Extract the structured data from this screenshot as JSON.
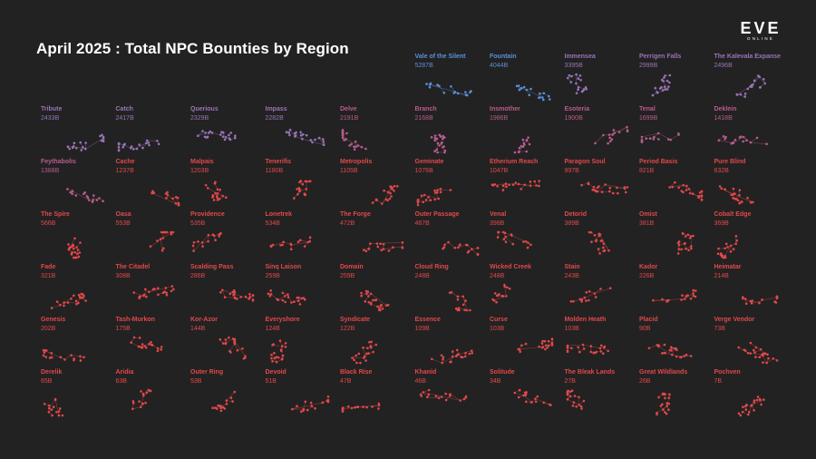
{
  "title": "April 2025 : Total NPC Bounties by Region",
  "logo": {
    "word": "EVE",
    "sub": "ONLINE"
  },
  "colors": {
    "background": "#222222",
    "tier_blue": "#5b8fd8",
    "tier_purple": "#9a74b6",
    "tier_pink": "#b75c8d",
    "tier_red": "#e2484a"
  },
  "chart_data": {
    "type": "table",
    "title": "April 2025 : Total NPC Bounties by Region",
    "unit": "B",
    "regions": [
      {
        "name": "Vale of the Silent",
        "value": "5287B",
        "tier": "blue"
      },
      {
        "name": "Fountain",
        "value": "4044B",
        "tier": "blue"
      },
      {
        "name": "Immensea",
        "value": "3395B",
        "tier": "purple"
      },
      {
        "name": "Perrigen Falls",
        "value": "2999B",
        "tier": "purple"
      },
      {
        "name": "The Kalevala Expanse",
        "value": "2496B",
        "tier": "purple"
      },
      {
        "name": "Tribute",
        "value": "2433B",
        "tier": "purple"
      },
      {
        "name": "Catch",
        "value": "2417B",
        "tier": "purple"
      },
      {
        "name": "Querious",
        "value": "2329B",
        "tier": "purple"
      },
      {
        "name": "Impass",
        "value": "2282B",
        "tier": "purple"
      },
      {
        "name": "Delve",
        "value": "2191B",
        "tier": "pink"
      },
      {
        "name": "Branch",
        "value": "2168B",
        "tier": "pink"
      },
      {
        "name": "Insmother",
        "value": "1986B",
        "tier": "pink"
      },
      {
        "name": "Esoteria",
        "value": "1900B",
        "tier": "pink"
      },
      {
        "name": "Tenal",
        "value": "1699B",
        "tier": "pink"
      },
      {
        "name": "Deklein",
        "value": "1418B",
        "tier": "pink"
      },
      {
        "name": "Feythabolis",
        "value": "1388B",
        "tier": "pink"
      },
      {
        "name": "Cache",
        "value": "1237B",
        "tier": "red"
      },
      {
        "name": "Malpais",
        "value": "1203B",
        "tier": "red"
      },
      {
        "name": "Tenerifis",
        "value": "1180B",
        "tier": "red"
      },
      {
        "name": "Metropolis",
        "value": "1105B",
        "tier": "red"
      },
      {
        "name": "Geminate",
        "value": "1076B",
        "tier": "red"
      },
      {
        "name": "Etherium Reach",
        "value": "1047B",
        "tier": "red"
      },
      {
        "name": "Paragon Soul",
        "value": "997B",
        "tier": "red"
      },
      {
        "name": "Period Basis",
        "value": "821B",
        "tier": "red"
      },
      {
        "name": "Pure Blind",
        "value": "632B",
        "tier": "red"
      },
      {
        "name": "The Spire",
        "value": "566B",
        "tier": "red"
      },
      {
        "name": "Oasa",
        "value": "553B",
        "tier": "red"
      },
      {
        "name": "Providence",
        "value": "535B",
        "tier": "red"
      },
      {
        "name": "Lonetrek",
        "value": "534B",
        "tier": "red"
      },
      {
        "name": "The Forge",
        "value": "472B",
        "tier": "red"
      },
      {
        "name": "Outer Passage",
        "value": "467B",
        "tier": "red"
      },
      {
        "name": "Venal",
        "value": "398B",
        "tier": "red"
      },
      {
        "name": "Detorid",
        "value": "389B",
        "tier": "red"
      },
      {
        "name": "Omist",
        "value": "381B",
        "tier": "red"
      },
      {
        "name": "Cobalt Edge",
        "value": "369B",
        "tier": "red"
      },
      {
        "name": "Fade",
        "value": "321B",
        "tier": "red"
      },
      {
        "name": "The Citadel",
        "value": "308B",
        "tier": "red"
      },
      {
        "name": "Scalding Pass",
        "value": "286B",
        "tier": "red"
      },
      {
        "name": "Sinq Laison",
        "value": "259B",
        "tier": "red"
      },
      {
        "name": "Domain",
        "value": "259B",
        "tier": "red"
      },
      {
        "name": "Cloud Ring",
        "value": "248B",
        "tier": "red"
      },
      {
        "name": "Wicked Creek",
        "value": "248B",
        "tier": "red"
      },
      {
        "name": "Stain",
        "value": "243B",
        "tier": "red"
      },
      {
        "name": "Kador",
        "value": "226B",
        "tier": "red"
      },
      {
        "name": "Heimatar",
        "value": "214B",
        "tier": "red"
      },
      {
        "name": "Genesis",
        "value": "202B",
        "tier": "red"
      },
      {
        "name": "Tash-Murkon",
        "value": "175B",
        "tier": "red"
      },
      {
        "name": "Kor-Azor",
        "value": "144B",
        "tier": "red"
      },
      {
        "name": "Everyshore",
        "value": "124B",
        "tier": "red"
      },
      {
        "name": "Syndicate",
        "value": "122B",
        "tier": "red"
      },
      {
        "name": "Essence",
        "value": "109B",
        "tier": "red"
      },
      {
        "name": "Curse",
        "value": "103B",
        "tier": "red"
      },
      {
        "name": "Molden Heath",
        "value": "103B",
        "tier": "red"
      },
      {
        "name": "Placid",
        "value": "90B",
        "tier": "red"
      },
      {
        "name": "Verge Vendor",
        "value": "73B",
        "tier": "red"
      },
      {
        "name": "Derelik",
        "value": "65B",
        "tier": "red"
      },
      {
        "name": "Aridia",
        "value": "63B",
        "tier": "red"
      },
      {
        "name": "Outer Ring",
        "value": "53B",
        "tier": "red"
      },
      {
        "name": "Devoid",
        "value": "51B",
        "tier": "red"
      },
      {
        "name": "Black Rise",
        "value": "47B",
        "tier": "red"
      },
      {
        "name": "Khanid",
        "value": "46B",
        "tier": "red"
      },
      {
        "name": "Solitude",
        "value": "34B",
        "tier": "red"
      },
      {
        "name": "The Bleak Lands",
        "value": "27B",
        "tier": "red"
      },
      {
        "name": "Great Wildlands",
        "value": "26B",
        "tier": "red"
      },
      {
        "name": "Pochven",
        "value": "7B",
        "tier": "red"
      }
    ]
  }
}
